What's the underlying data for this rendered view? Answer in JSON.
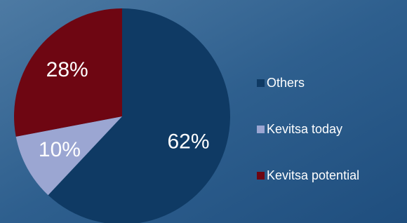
{
  "chart_data": {
    "type": "pie",
    "categories": [
      "Others",
      "Kevitsa today",
      "Kevitsa potential"
    ],
    "values": [
      62,
      10,
      28
    ],
    "value_labels": [
      "62%",
      "10%",
      "28%"
    ],
    "colors": [
      "#0f3a64",
      "#9ba6d2",
      "#6e0612"
    ],
    "legend": "right"
  }
}
